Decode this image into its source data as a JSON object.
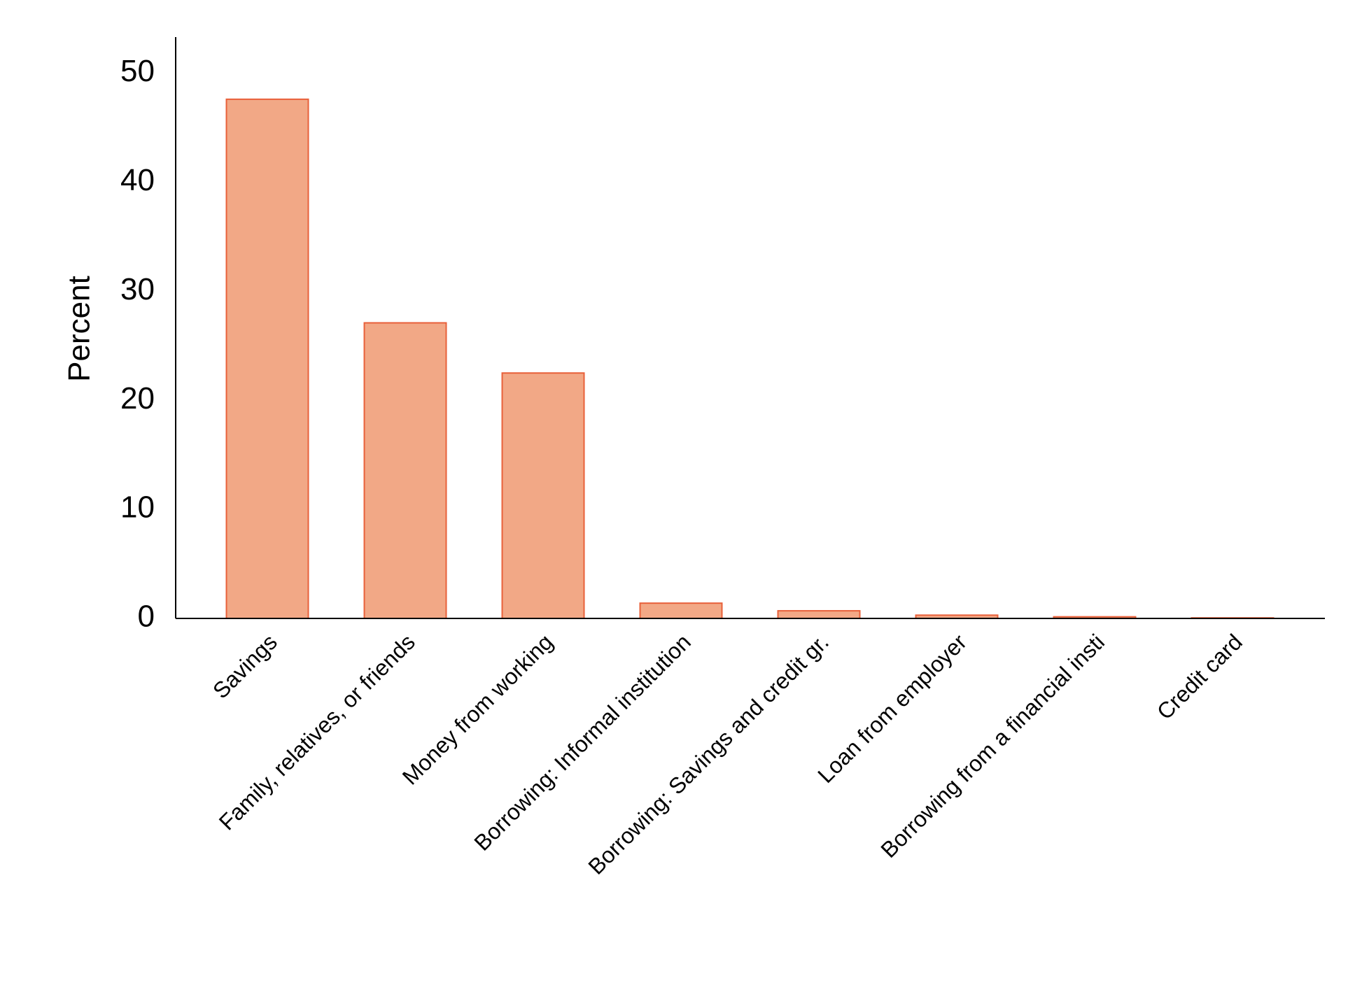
{
  "chart_data": {
    "type": "bar",
    "y_label": "Percent",
    "categories": [
      "Savings",
      "Family, relatives, or friends",
      "Money from working",
      "Borrowing: Informal institution",
      "Borrowing: Savings and credit gr.",
      "Loan from employer",
      "Borrowing from a financial insti",
      "Credit card"
    ],
    "values": [
      47.6,
      27.1,
      22.5,
      1.4,
      0.7,
      0.3,
      0.15,
      0.05
    ],
    "color": "#f2a886",
    "edge_color": "#e8603a",
    "ylim": [
      0,
      53.3
    ],
    "yticks": [
      0,
      10,
      20,
      30,
      40,
      50
    ],
    "grid": false
  }
}
